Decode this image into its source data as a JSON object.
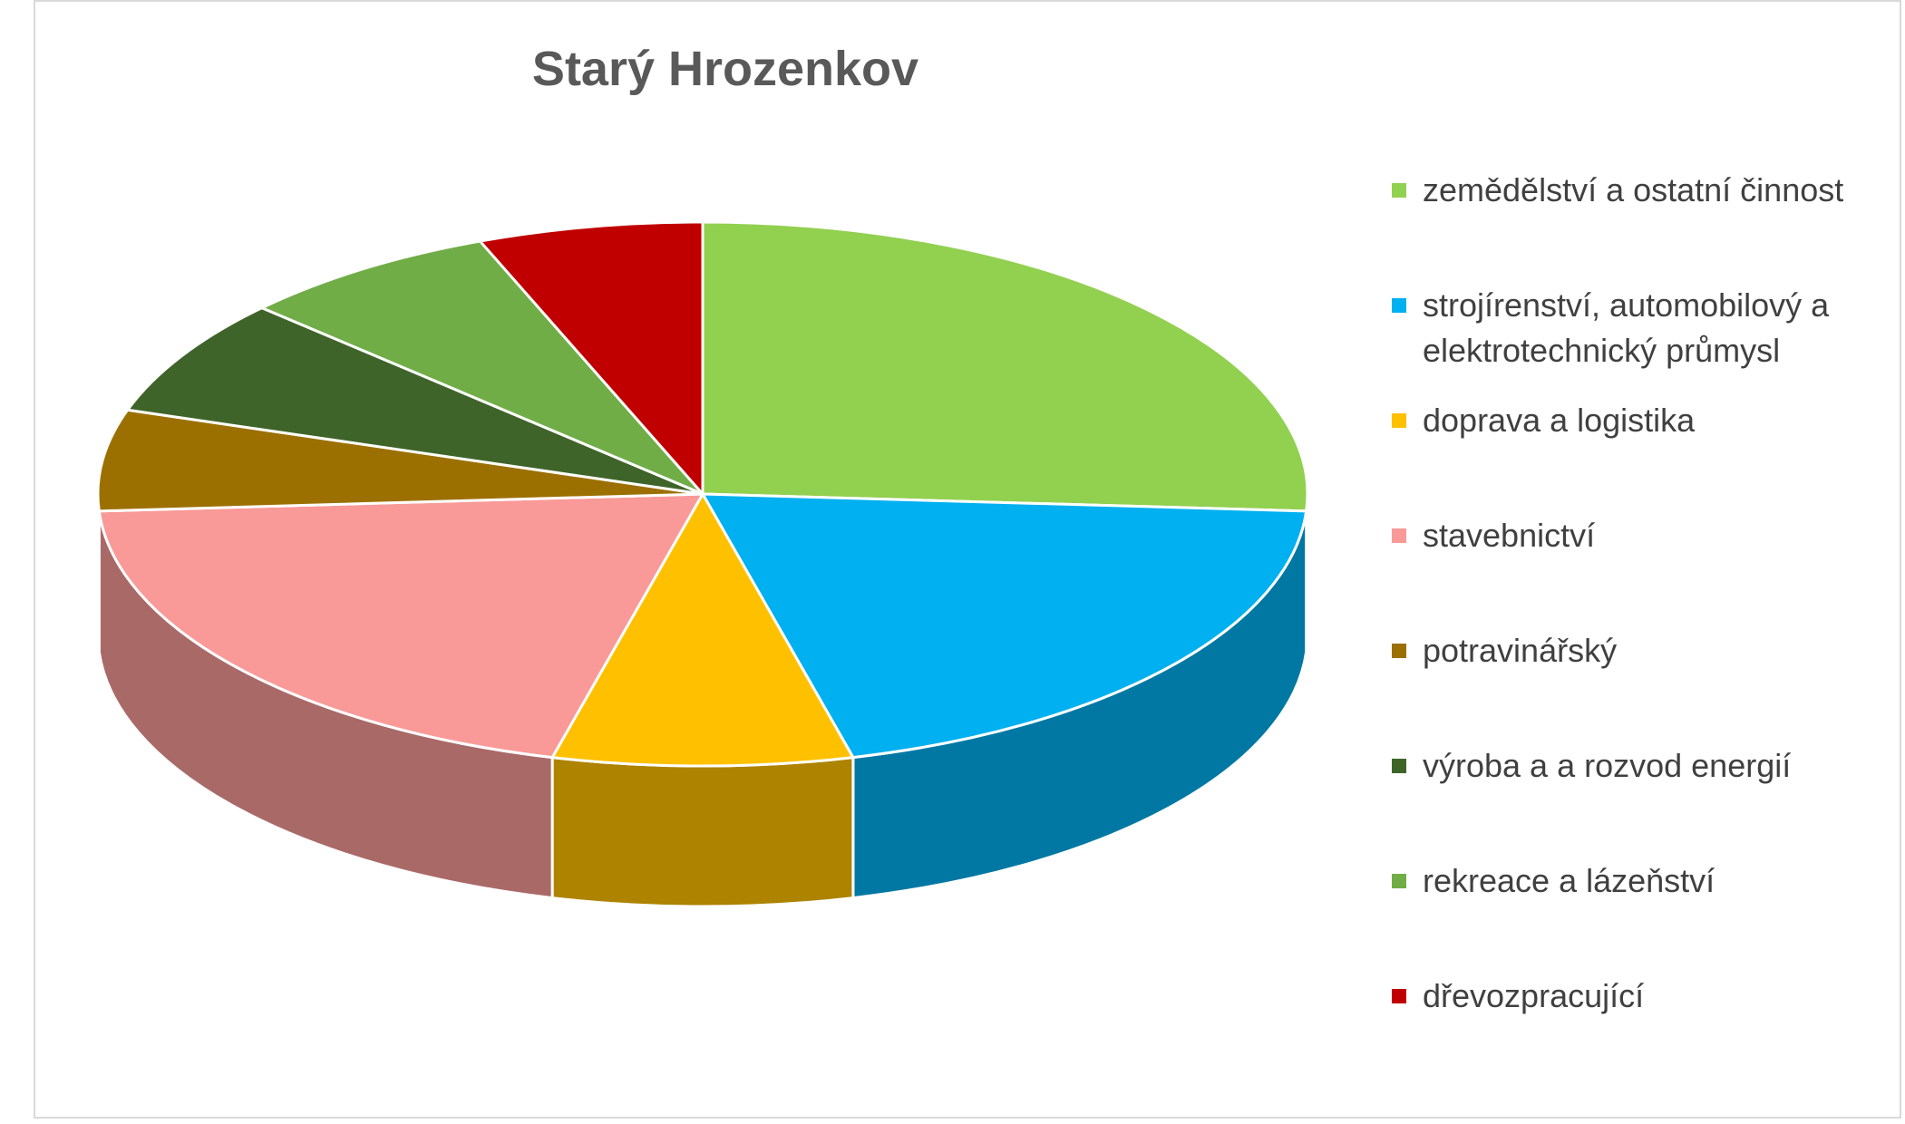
{
  "chart_data": {
    "type": "pie",
    "3d": true,
    "title": "Starý Hrozenkov",
    "categories": [
      "zemědělství a ostatní činnost",
      "strojírenství, automobilový a elektrotechnický průmysl",
      "doprava a logistika",
      "stavebnictví",
      "potravinářský",
      "výroba a a rozvod energií",
      "rekreace a lázeňství",
      "dřevozpracující"
    ],
    "values": [
      26,
      20,
      8,
      20,
      6,
      7,
      7,
      6
    ],
    "colors": [
      "#92d050",
      "#00b0f0",
      "#ffc000",
      "#f99a98",
      "#9c7000",
      "#3f6429",
      "#70ad47",
      "#c00000"
    ],
    "legend": "right"
  }
}
